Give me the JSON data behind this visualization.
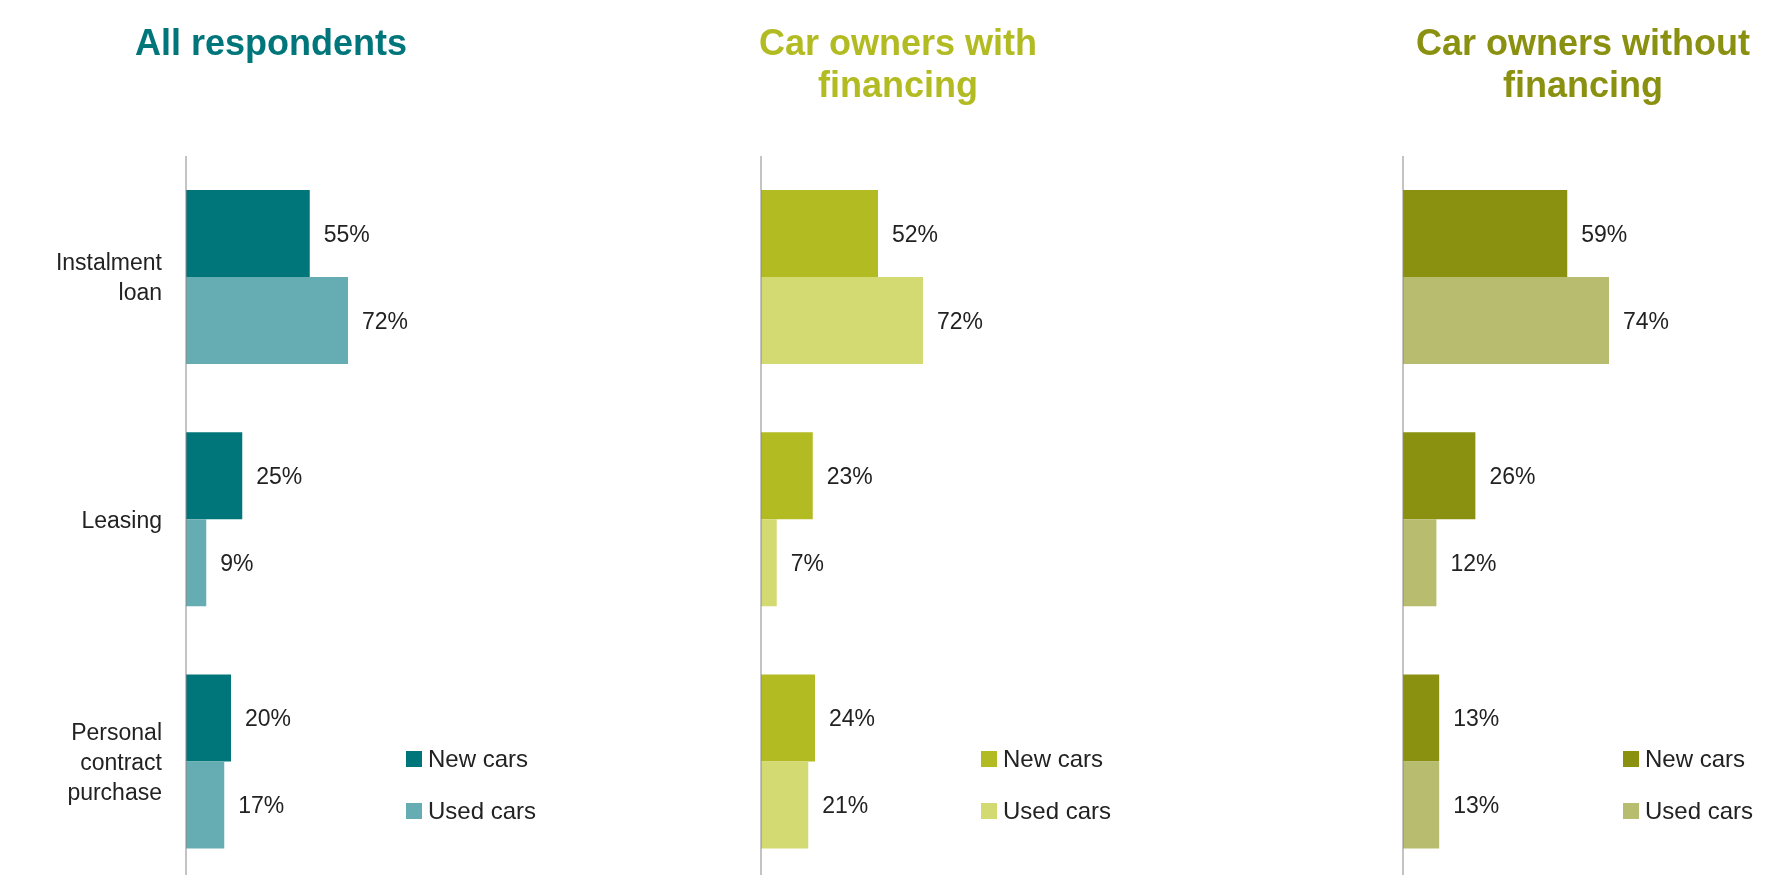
{
  "chart_data": [
    {
      "type": "bar",
      "orientation": "horizontal",
      "title": "All respondents",
      "categories": [
        "Instalment loan",
        "Leasing",
        "Personal contract purchase"
      ],
      "tick_labels": "y",
      "legend": "bottom right",
      "series": [
        {
          "name": "New cars",
          "color": "#00767a",
          "values": [
            55,
            25,
            20
          ],
          "value_labels": [
            "55%",
            "25%",
            "20%"
          ]
        },
        {
          "name": "Used cars",
          "color": "#66adb3",
          "values": [
            72,
            9,
            17
          ],
          "value_labels": [
            "72%",
            "9%",
            "17%"
          ]
        }
      ]
    },
    {
      "type": "bar",
      "orientation": "horizontal",
      "title": "Car owners with financing",
      "categories": [
        null,
        null,
        null
      ],
      "tick_labels": false,
      "legend": "bottom right",
      "series": [
        {
          "name": "New cars",
          "color": "#b3bb22",
          "values": [
            52,
            23,
            24
          ],
          "value_labels": [
            "52%",
            "23%",
            "24%"
          ]
        },
        {
          "name": "Used cars",
          "color": "#d4da72",
          "values": [
            72,
            7,
            21
          ],
          "value_labels": [
            "72%",
            "7%",
            "21%"
          ]
        }
      ]
    },
    {
      "type": "bar",
      "orientation": "horizontal",
      "title": "Car owners without financing",
      "categories": [
        null,
        null,
        null
      ],
      "tick_labels": false,
      "legend": "bottom right",
      "series": [
        {
          "name": "New cars",
          "color": "#8a900f",
          "values": [
            59,
            26,
            13
          ],
          "value_labels": [
            "59%",
            "26%",
            "13%"
          ]
        },
        {
          "name": "Used cars",
          "color": "#b8bc6e",
          "values": [
            74,
            12,
            13
          ],
          "value_labels": [
            "74%",
            "12%",
            "13%"
          ]
        }
      ]
    }
  ]
}
